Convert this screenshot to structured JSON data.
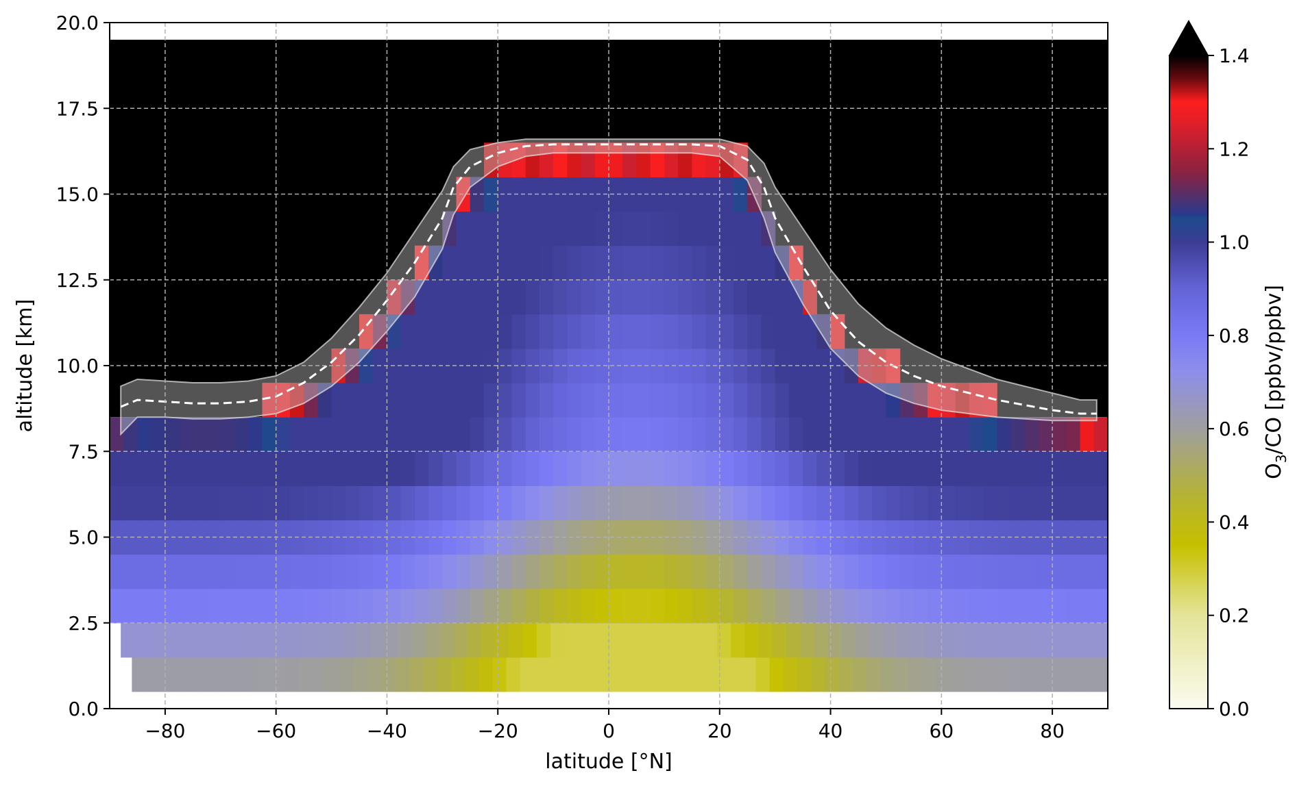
{
  "chart_data": {
    "type": "heatmap",
    "xlabel": "latitude [°N]",
    "ylabel": "altitude [km]",
    "xlim": [
      -90,
      90
    ],
    "ylim": [
      0,
      20
    ],
    "x_ticks": [
      -80,
      -60,
      -40,
      -20,
      0,
      20,
      40,
      60,
      80
    ],
    "x_tick_labels": [
      "−80",
      "−60",
      "−40",
      "−20",
      "0",
      "20",
      "40",
      "60",
      "80"
    ],
    "y_ticks": [
      0,
      2.5,
      5,
      7.5,
      10,
      12.5,
      15,
      17.5,
      20
    ],
    "y_tick_labels": [
      "0.0",
      "2.5",
      "5.0",
      "7.5",
      "10.0",
      "12.5",
      "15.0",
      "17.5",
      "20.0"
    ],
    "grid": true,
    "colorbar": {
      "label_main": "O",
      "label_sub": "3",
      "label_rest": "/CO [ppbv/ppbv]",
      "range": [
        0,
        1.4
      ],
      "extend": "max",
      "ticks": [
        0,
        0.2,
        0.4,
        0.6,
        0.8,
        1.0,
        1.2,
        1.4
      ],
      "tick_labels": [
        "0.0",
        "0.2",
        "0.4",
        "0.6",
        "0.8",
        "1.0",
        "1.2",
        "1.4"
      ],
      "stops": [
        {
          "value": 0.0,
          "color": "#fbfbef"
        },
        {
          "value": 0.2,
          "color": "#e4e49a"
        },
        {
          "value": 0.35,
          "color": "#c6c000"
        },
        {
          "value": 0.45,
          "color": "#b6b430"
        },
        {
          "value": 0.6,
          "color": "#9f9f9f"
        },
        {
          "value": 0.72,
          "color": "#8e8eeb"
        },
        {
          "value": 0.8,
          "color": "#7a7af5"
        },
        {
          "value": 0.9,
          "color": "#6464d7"
        },
        {
          "value": 1.0,
          "color": "#3c3c94"
        },
        {
          "value": 1.05,
          "color": "#1e4a8c"
        },
        {
          "value": 1.06,
          "color": "#2a3a8c"
        },
        {
          "value": 1.15,
          "color": "#8a2240"
        },
        {
          "value": 1.25,
          "color": "#dc1f2a"
        },
        {
          "value": 1.3,
          "color": "#ff1e1e"
        },
        {
          "value": 1.35,
          "color": "#6a0a10"
        },
        {
          "value": 1.4,
          "color": "#000000"
        }
      ]
    },
    "tropopause": {
      "lat": [
        -88,
        -85,
        -80,
        -75,
        -70,
        -65,
        -60,
        -55,
        -50,
        -45,
        -40,
        -35,
        -30,
        -28,
        -25,
        -20,
        -15,
        -10,
        -5,
        0,
        5,
        10,
        15,
        20,
        25,
        28,
        30,
        35,
        40,
        45,
        50,
        55,
        60,
        65,
        70,
        75,
        80,
        85,
        88
      ],
      "mean": [
        8.8,
        9.0,
        8.95,
        8.9,
        8.9,
        8.95,
        9.1,
        9.5,
        10.1,
        10.9,
        11.9,
        13.0,
        14.3,
        15.2,
        15.8,
        16.2,
        16.4,
        16.45,
        16.45,
        16.45,
        16.45,
        16.45,
        16.45,
        16.4,
        16.0,
        15.2,
        14.3,
        12.9,
        11.6,
        10.7,
        10.1,
        9.7,
        9.4,
        9.2,
        9.0,
        8.85,
        8.7,
        8.6,
        8.6
      ],
      "lower": [
        8.0,
        8.5,
        8.5,
        8.45,
        8.45,
        8.5,
        8.6,
        8.9,
        9.4,
        10.1,
        11.0,
        12.0,
        13.4,
        14.4,
        15.2,
        15.8,
        16.1,
        16.2,
        16.2,
        16.2,
        16.2,
        16.2,
        16.2,
        16.1,
        15.4,
        14.3,
        13.3,
        11.8,
        10.5,
        9.7,
        9.2,
        8.9,
        8.7,
        8.6,
        8.5,
        8.45,
        8.4,
        8.4,
        8.4
      ],
      "upper": [
        9.4,
        9.6,
        9.55,
        9.5,
        9.5,
        9.55,
        9.7,
        10.1,
        10.8,
        11.7,
        12.7,
        13.9,
        15.1,
        15.8,
        16.3,
        16.5,
        16.6,
        16.6,
        16.6,
        16.6,
        16.6,
        16.6,
        16.6,
        16.6,
        16.4,
        15.9,
        15.2,
        14.0,
        12.8,
        11.8,
        11.1,
        10.6,
        10.2,
        9.9,
        9.6,
        9.4,
        9.2,
        9.0,
        9.0
      ]
    }
  }
}
